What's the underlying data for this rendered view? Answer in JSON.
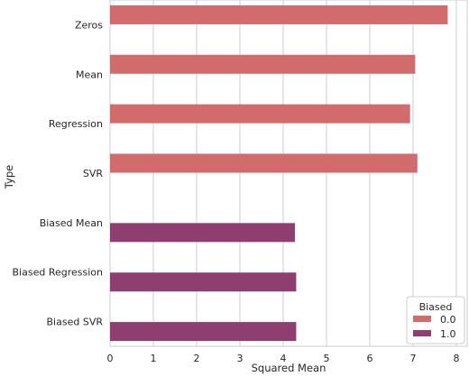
{
  "chart_data": {
    "type": "bar",
    "orientation": "horizontal",
    "categories": [
      "Zeros",
      "Mean",
      "Regression",
      "SVR",
      "Biased Mean",
      "Biased Regression",
      "Biased SVR"
    ],
    "series": [
      {
        "name": "0.0",
        "color": "#d26b6b",
        "values": [
          7.8,
          7.05,
          6.93,
          7.1,
          null,
          null,
          null
        ]
      },
      {
        "name": "1.0",
        "color": "#8e3e6f",
        "values": [
          null,
          null,
          null,
          null,
          4.27,
          4.3,
          4.3
        ]
      }
    ],
    "xlabel": "Squared Mean",
    "ylabel": "Type",
    "xlim": [
      0,
      8.25
    ],
    "xticks": [
      0,
      1,
      2,
      3,
      4,
      5,
      6,
      7,
      8
    ],
    "grid": "vertical",
    "legend": {
      "title": "Biased",
      "placement": "bottom-right"
    }
  }
}
